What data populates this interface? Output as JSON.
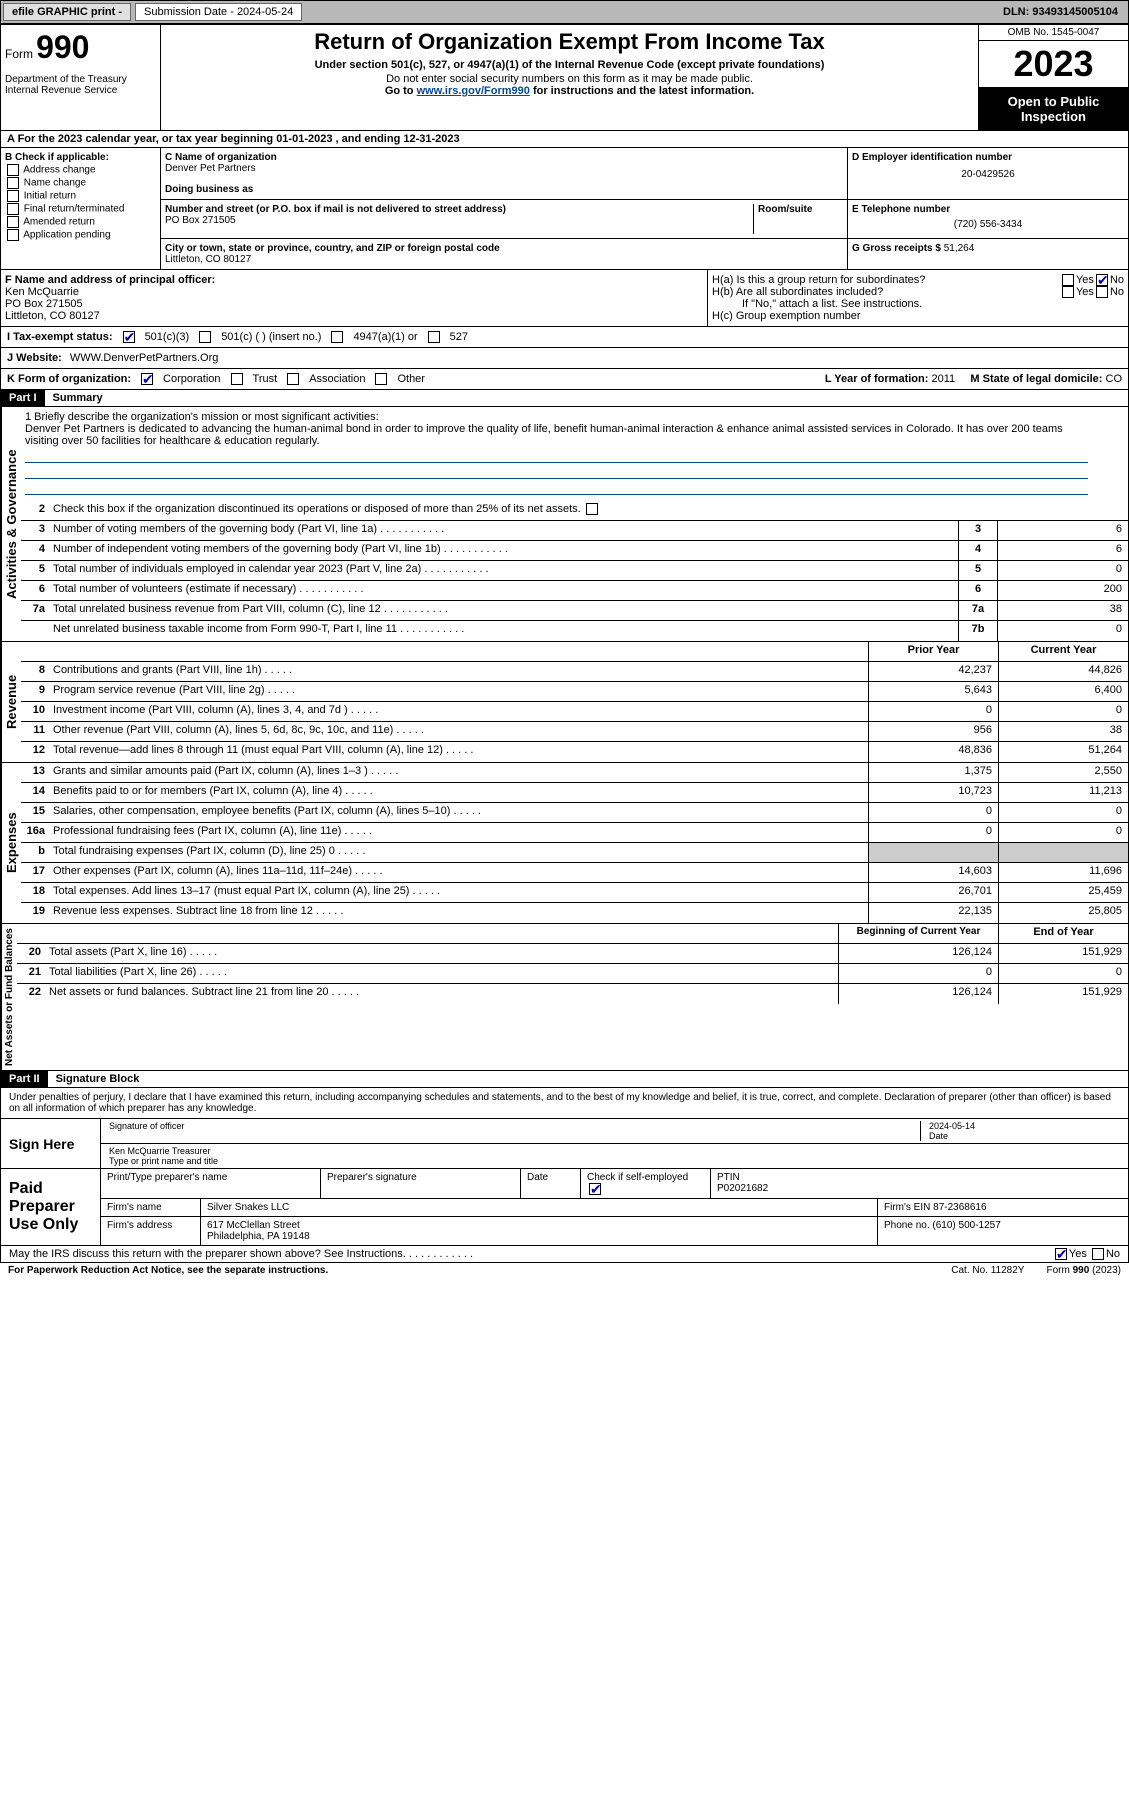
{
  "topbar": {
    "efile": "efile GRAPHIC print -",
    "submission_label": "Submission Date - 2024-05-24",
    "dln": "DLN: 93493145005104"
  },
  "header": {
    "form_word": "Form",
    "form_num": "990",
    "dept": "Department of the Treasury\nInternal Revenue Service",
    "title": "Return of Organization Exempt From Income Tax",
    "sub1": "Under section 501(c), 527, or 4947(a)(1) of the Internal Revenue Code (except private foundations)",
    "sub2": "Do not enter social security numbers on this form as it may be made public.",
    "sub3_pre": "Go to ",
    "sub3_link": "www.irs.gov/Form990",
    "sub3_post": " for instructions and the latest information.",
    "omb": "OMB No. 1545-0047",
    "year": "2023",
    "inspection": "Open to Public Inspection"
  },
  "rowA": "A For the 2023 calendar year, or tax year beginning 01-01-2023   , and ending 12-31-2023",
  "colB": {
    "title": "B Check if applicable:",
    "opts": [
      "Address change",
      "Name change",
      "Initial return",
      "Final return/terminated",
      "Amended return",
      "Application pending"
    ]
  },
  "c": {
    "name_lbl": "C Name of organization",
    "name": "Denver Pet Partners",
    "dba_lbl": "Doing business as",
    "street_lbl": "Number and street (or P.O. box if mail is not delivered to street address)",
    "room_lbl": "Room/suite",
    "street": "PO Box 271505",
    "city_lbl": "City or town, state or province, country, and ZIP or foreign postal code",
    "city": "Littleton, CO  80127"
  },
  "d": {
    "ein_lbl": "D Employer identification number",
    "ein": "20-0429526",
    "tel_lbl": "E Telephone number",
    "tel": "(720) 556-3434",
    "gross_lbl": "G Gross receipts $",
    "gross": "51,264"
  },
  "f": {
    "lbl": "F Name and address of principal officer:",
    "name": "Ken McQuarrie",
    "addr1": "PO Box 271505",
    "addr2": "Littleton, CO  80127"
  },
  "h": {
    "a": "H(a)  Is this a group return for subordinates?",
    "b": "H(b)  Are all subordinates included?",
    "b2": "If \"No,\" attach a list. See instructions.",
    "c": "H(c)  Group exemption number"
  },
  "i": {
    "lbl": "I   Tax-exempt status:",
    "o1": "501(c)(3)",
    "o2": "501(c) (  ) (insert no.)",
    "o3": "4947(a)(1) or",
    "o4": "527"
  },
  "j": {
    "lbl": "J   Website:",
    "val": "WWW.DenverPetPartners.Org"
  },
  "k": {
    "lbl": "K Form of organization:",
    "o1": "Corporation",
    "o2": "Trust",
    "o3": "Association",
    "o4": "Other"
  },
  "l": {
    "lbl": "L Year of formation:",
    "val": "2011"
  },
  "m": {
    "lbl": "M State of legal domicile:",
    "val": "CO"
  },
  "part1": {
    "hdr": "Part I",
    "title": "Summary"
  },
  "mission": {
    "q": "1   Briefly describe the organization's mission or most significant activities:",
    "text": "Denver Pet Partners is dedicated to advancing the human-animal bond in order to improve the quality of life, benefit human-animal interaction & enhance animal assisted services in Colorado. It has over 200 teams visiting over 50 facilities for healthcare & education regularly."
  },
  "line2": "Check this box        if the organization discontinued its operations or disposed of more than 25% of its net assets.",
  "governance": [
    {
      "n": "3",
      "d": "Number of voting members of the governing body (Part VI, line 1a)",
      "c": "3",
      "v": "6"
    },
    {
      "n": "4",
      "d": "Number of independent voting members of the governing body (Part VI, line 1b)",
      "c": "4",
      "v": "6"
    },
    {
      "n": "5",
      "d": "Total number of individuals employed in calendar year 2023 (Part V, line 2a)",
      "c": "5",
      "v": "0"
    },
    {
      "n": "6",
      "d": "Total number of volunteers (estimate if necessary)",
      "c": "6",
      "v": "200"
    },
    {
      "n": "7a",
      "d": "Total unrelated business revenue from Part VIII, column (C), line 12",
      "c": "7a",
      "v": "38"
    },
    {
      "n": "",
      "d": "Net unrelated business taxable income from Form 990-T, Part I, line 11",
      "c": "7b",
      "v": "0"
    }
  ],
  "rev_hdr": {
    "prior": "Prior Year",
    "current": "Current Year"
  },
  "revenue": [
    {
      "n": "8",
      "d": "Contributions and grants (Part VIII, line 1h)",
      "p": "42,237",
      "c": "44,826"
    },
    {
      "n": "9",
      "d": "Program service revenue (Part VIII, line 2g)",
      "p": "5,643",
      "c": "6,400"
    },
    {
      "n": "10",
      "d": "Investment income (Part VIII, column (A), lines 3, 4, and 7d )",
      "p": "0",
      "c": "0"
    },
    {
      "n": "11",
      "d": "Other revenue (Part VIII, column (A), lines 5, 6d, 8c, 9c, 10c, and 11e)",
      "p": "956",
      "c": "38"
    },
    {
      "n": "12",
      "d": "Total revenue—add lines 8 through 11 (must equal Part VIII, column (A), line 12)",
      "p": "48,836",
      "c": "51,264"
    }
  ],
  "expenses": [
    {
      "n": "13",
      "d": "Grants and similar amounts paid (Part IX, column (A), lines 1–3 )",
      "p": "1,375",
      "c": "2,550"
    },
    {
      "n": "14",
      "d": "Benefits paid to or for members (Part IX, column (A), line 4)",
      "p": "10,723",
      "c": "11,213"
    },
    {
      "n": "15",
      "d": "Salaries, other compensation, employee benefits (Part IX, column (A), lines 5–10)",
      "p": "0",
      "c": "0"
    },
    {
      "n": "16a",
      "d": "Professional fundraising fees (Part IX, column (A), line 11e)",
      "p": "0",
      "c": "0"
    },
    {
      "n": "b",
      "d": "Total fundraising expenses (Part IX, column (D), line 25) 0",
      "p": "",
      "c": "",
      "shade": true
    },
    {
      "n": "17",
      "d": "Other expenses (Part IX, column (A), lines 11a–11d, 11f–24e)",
      "p": "14,603",
      "c": "11,696"
    },
    {
      "n": "18",
      "d": "Total expenses. Add lines 13–17 (must equal Part IX, column (A), line 25)",
      "p": "26,701",
      "c": "25,459"
    },
    {
      "n": "19",
      "d": "Revenue less expenses. Subtract line 18 from line 12",
      "p": "22,135",
      "c": "25,805"
    }
  ],
  "na_hdr": {
    "prior": "Beginning of Current Year",
    "current": "End of Year"
  },
  "netassets": [
    {
      "n": "20",
      "d": "Total assets (Part X, line 16)",
      "p": "126,124",
      "c": "151,929"
    },
    {
      "n": "21",
      "d": "Total liabilities (Part X, line 26)",
      "p": "0",
      "c": "0"
    },
    {
      "n": "22",
      "d": "Net assets or fund balances. Subtract line 21 from line 20",
      "p": "126,124",
      "c": "151,929"
    }
  ],
  "part2": {
    "hdr": "Part II",
    "title": "Signature Block"
  },
  "sig": {
    "perjury": "Under penalties of perjury, I declare that I have examined this return, including accompanying schedules and statements, and to the best of my knowledge and belief, it is true, correct, and complete. Declaration of preparer (other than officer) is based on all information of which preparer has any knowledge.",
    "sign_here": "Sign Here",
    "sig_lbl": "Signature of officer",
    "date_lbl": "Date",
    "date_val": "2024-05-14",
    "officer": "Ken McQuarrie  Treasurer",
    "type_lbl": "Type or print name and title"
  },
  "paid": {
    "lbl": "Paid Preparer Use Only",
    "col1": "Print/Type preparer's name",
    "col2": "Preparer's signature",
    "col3": "Date",
    "col4_lbl": "Check         if self-employed",
    "col5_lbl": "PTIN",
    "ptin": "P02021682",
    "firm_name_lbl": "Firm's name",
    "firm_name": "Silver Snakes LLC",
    "firm_ein_lbl": "Firm's EIN",
    "firm_ein": "87-2368616",
    "firm_addr_lbl": "Firm's address",
    "firm_addr1": "617 McClellan Street",
    "firm_addr2": "Philadelphia, PA  19148",
    "phone_lbl": "Phone no.",
    "phone": "(610) 500-1257"
  },
  "discuss": "May the IRS discuss this return with the preparer shown above? See Instructions.",
  "footer": {
    "pra": "For Paperwork Reduction Act Notice, see the separate instructions.",
    "cat": "Cat. No. 11282Y",
    "form": "Form 990 (2023)"
  },
  "vlabels": {
    "gov": "Activities & Governance",
    "rev": "Revenue",
    "exp": "Expenses",
    "na": "Net Assets or Fund Balances"
  }
}
